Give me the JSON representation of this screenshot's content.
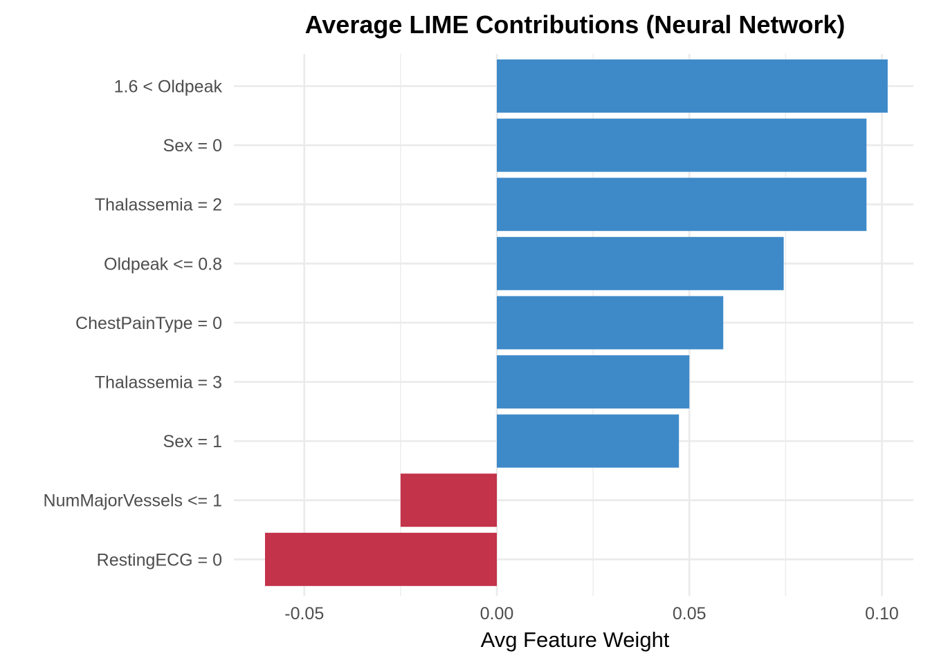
{
  "chart_data": {
    "type": "bar",
    "orientation": "horizontal",
    "title": "Average LIME Contributions (Neural Network)",
    "xlabel": "Avg Feature Weight",
    "ylabel": "",
    "xlim": [
      -0.066,
      0.1
    ],
    "x_ticks": [
      -0.05,
      0.0,
      0.05,
      0.1
    ],
    "x_tick_labels": [
      "-0.05",
      "0.00",
      "0.05",
      "0.10"
    ],
    "grid": true,
    "legend": "none",
    "categories": [
      "1.6 < Oldpeak",
      "Sex = 0",
      "Thalassemia = 2",
      "Oldpeak <= 0.8",
      "ChestPainType = 0",
      "Thalassemia = 3",
      "Sex = 1",
      "NumMajorVessels <= 1",
      "RestingECG = 0"
    ],
    "values": [
      0.1015,
      0.096,
      0.096,
      0.0745,
      0.0588,
      0.05,
      0.0473,
      -0.025,
      -0.0602
    ],
    "colors": {
      "positive": "#3e8ac9",
      "negative": "#c3334a",
      "grid": "#ebebeb",
      "axis_text": "#4d4d4d"
    }
  }
}
